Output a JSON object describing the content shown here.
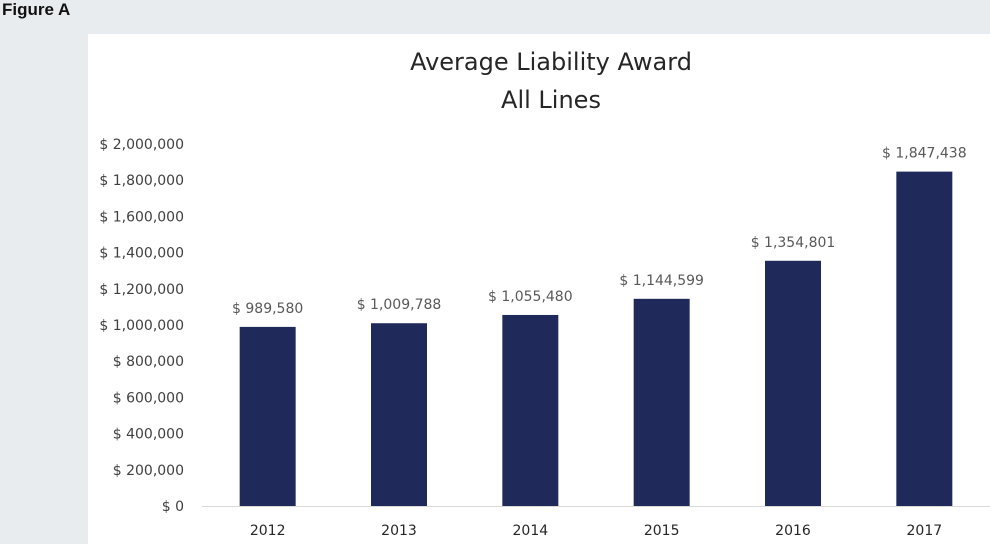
{
  "figure_label": "Figure A",
  "chart_data": {
    "type": "bar",
    "title_lines": [
      "Average Liability Award",
      "All Lines"
    ],
    "categories": [
      "2012",
      "2013",
      "2014",
      "2015",
      "2016",
      "2017"
    ],
    "values": [
      989580,
      1009788,
      1055480,
      1144599,
      1354801,
      1847438
    ],
    "data_labels": [
      "$ 989,580",
      "$ 1,009,788",
      "$ 1,055,480",
      "$ 1,144,599",
      "$ 1,354,801",
      "$ 1,847,438"
    ],
    "y_ticks": [
      0,
      200000,
      400000,
      600000,
      800000,
      1000000,
      1200000,
      1400000,
      1600000,
      1800000,
      2000000
    ],
    "y_tick_labels": [
      "$ 0",
      "$ 200,000",
      "$ 400,000",
      "$ 600,000",
      "$ 800,000",
      "$ 1,000,000",
      "$ 1,200,000",
      "$ 1,400,000",
      "$ 1,600,000",
      "$ 1,800,000",
      "$ 2,000,000"
    ],
    "ylim": [
      0,
      2000000
    ],
    "grid": false,
    "bar_color": "#1f2a5a",
    "xlabel": "",
    "ylabel": ""
  }
}
